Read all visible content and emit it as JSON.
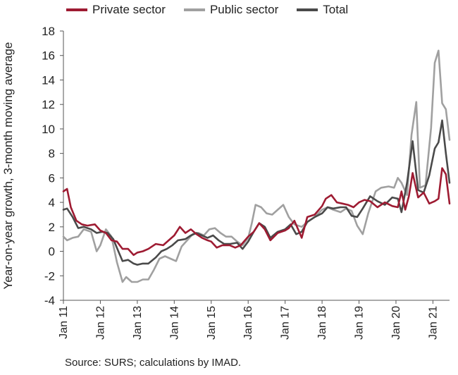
{
  "chart_data": {
    "type": "line",
    "title": "",
    "ylabel": "Year-on-year growth, 3-month moving average",
    "xlabel": "",
    "ylim": [
      -4,
      18
    ],
    "yticks": [
      "18",
      "16",
      "14",
      "12",
      "10",
      "8",
      "6",
      "4",
      "2",
      "0",
      "-2",
      "-4"
    ],
    "ytick_values": [
      18,
      16,
      14,
      12,
      10,
      8,
      6,
      4,
      2,
      0,
      -2,
      -4
    ],
    "xticks": [
      "Jan 11",
      "Jan 12",
      "Jan 13",
      "Jan 14",
      "Jan 15",
      "Jan 16",
      "Jan 17",
      "Jan 18",
      "Jan 19",
      "Jan 20",
      "Jan 21"
    ],
    "xlim": [
      2011.0,
      2021.45
    ],
    "grid": false,
    "legend_position": "top",
    "series": [
      {
        "name": "Private sector",
        "color": "#9e1b32",
        "x": [
          2011.0,
          2011.1,
          2011.2,
          2011.35,
          2011.5,
          2011.65,
          2011.85,
          2012.0,
          2012.15,
          2012.3,
          2012.45,
          2012.6,
          2012.75,
          2012.9,
          2013.0,
          2013.15,
          2013.3,
          2013.5,
          2013.7,
          2013.85,
          2014.0,
          2014.15,
          2014.3,
          2014.45,
          2014.6,
          2014.75,
          2014.9,
          2015.0,
          2015.15,
          2015.3,
          2015.5,
          2015.65,
          2015.8,
          2016.0,
          2016.15,
          2016.3,
          2016.45,
          2016.6,
          2016.8,
          2017.0,
          2017.1,
          2017.25,
          2017.45,
          2017.6,
          2017.8,
          2018.0,
          2018.1,
          2018.25,
          2018.4,
          2018.55,
          2018.7,
          2018.85,
          2019.0,
          2019.15,
          2019.3,
          2019.5,
          2019.7,
          2019.9,
          2020.05,
          2020.15,
          2020.25,
          2020.35,
          2020.45,
          2020.6,
          2020.75,
          2020.9,
          2021.05,
          2021.15,
          2021.25,
          2021.35,
          2021.45
        ],
        "values": [
          4.9,
          5.1,
          3.6,
          2.5,
          2.2,
          2.1,
          2.2,
          1.7,
          1.5,
          0.9,
          0.8,
          0.2,
          0.2,
          -0.3,
          -0.1,
          0.0,
          0.2,
          0.6,
          0.5,
          0.9,
          1.3,
          2.0,
          1.5,
          1.8,
          1.4,
          1.1,
          0.9,
          0.8,
          0.3,
          0.5,
          0.5,
          0.3,
          0.5,
          1.2,
          1.6,
          2.3,
          1.8,
          0.9,
          1.5,
          1.7,
          1.9,
          2.5,
          1.1,
          2.8,
          3.0,
          3.7,
          4.3,
          4.6,
          4.0,
          3.9,
          3.8,
          3.6,
          4.0,
          4.2,
          4.1,
          3.6,
          4.0,
          3.7,
          3.6,
          4.9,
          3.4,
          4.5,
          6.4,
          4.4,
          4.8,
          3.9,
          4.1,
          4.3,
          6.8,
          6.3,
          3.9
        ]
      },
      {
        "name": "Public sector",
        "color": "#a0a0a0",
        "x": [
          2011.0,
          2011.1,
          2011.25,
          2011.4,
          2011.55,
          2011.75,
          2011.9,
          2012.0,
          2012.15,
          2012.3,
          2012.45,
          2012.6,
          2012.7,
          2012.85,
          2013.0,
          2013.15,
          2013.3,
          2013.45,
          2013.6,
          2013.75,
          2013.9,
          2014.05,
          2014.2,
          2014.35,
          2014.5,
          2014.65,
          2014.8,
          2014.95,
          2015.1,
          2015.25,
          2015.4,
          2015.55,
          2015.7,
          2015.85,
          2016.0,
          2016.1,
          2016.2,
          2016.35,
          2016.5,
          2016.65,
          2016.8,
          2016.95,
          2017.1,
          2017.25,
          2017.45,
          2017.6,
          2017.8,
          2018.0,
          2018.15,
          2018.3,
          2018.5,
          2018.65,
          2018.8,
          2018.95,
          2019.1,
          2019.25,
          2019.45,
          2019.6,
          2019.8,
          2019.95,
          2020.05,
          2020.15,
          2020.3,
          2020.42,
          2020.55,
          2020.65,
          2020.8,
          2020.95,
          2021.05,
          2021.15,
          2021.25,
          2021.35,
          2021.45
        ],
        "values": [
          1.2,
          0.9,
          1.1,
          1.2,
          1.8,
          1.6,
          0.0,
          0.5,
          1.8,
          1.2,
          -0.9,
          -2.5,
          -2.1,
          -2.5,
          -2.5,
          -2.3,
          -2.3,
          -1.5,
          -0.6,
          -0.4,
          -0.6,
          -0.8,
          0.4,
          0.9,
          1.4,
          1.5,
          1.3,
          1.8,
          1.9,
          1.5,
          1.2,
          1.2,
          0.8,
          0.5,
          1.1,
          2.3,
          3.8,
          3.6,
          3.1,
          3.0,
          3.4,
          3.8,
          2.8,
          2.2,
          2.0,
          2.4,
          2.8,
          3.4,
          3.6,
          3.4,
          3.2,
          3.5,
          3.3,
          2.1,
          1.4,
          3.1,
          4.9,
          5.2,
          5.3,
          5.2,
          6.0,
          5.6,
          4.6,
          9.5,
          12.2,
          5.2,
          5.4,
          10.1,
          15.4,
          16.4,
          12.1,
          11.6,
          9.1
        ]
      },
      {
        "name": "Total",
        "color": "#4a4a4a",
        "x": [
          2011.0,
          2011.1,
          2011.25,
          2011.4,
          2011.55,
          2011.75,
          2011.9,
          2012.05,
          2012.2,
          2012.35,
          2012.5,
          2012.6,
          2012.75,
          2012.9,
          2013.0,
          2013.15,
          2013.3,
          2013.5,
          2013.65,
          2013.8,
          2013.95,
          2014.1,
          2014.3,
          2014.45,
          2014.6,
          2014.75,
          2014.9,
          2015.05,
          2015.2,
          2015.35,
          2015.5,
          2015.7,
          2015.85,
          2016.0,
          2016.15,
          2016.3,
          2016.45,
          2016.6,
          2016.8,
          2017.0,
          2017.15,
          2017.3,
          2017.45,
          2017.6,
          2017.8,
          2018.0,
          2018.15,
          2018.3,
          2018.5,
          2018.65,
          2018.8,
          2018.95,
          2019.1,
          2019.3,
          2019.5,
          2019.7,
          2019.9,
          2020.05,
          2020.15,
          2020.3,
          2020.45,
          2020.6,
          2020.75,
          2020.9,
          2021.05,
          2021.15,
          2021.25,
          2021.35,
          2021.45
        ],
        "values": [
          3.4,
          3.5,
          2.8,
          1.9,
          2.0,
          1.8,
          1.5,
          1.6,
          1.5,
          1.0,
          -0.1,
          -0.8,
          -0.7,
          -1.0,
          -1.1,
          -1.0,
          -1.0,
          -0.5,
          0.0,
          0.2,
          0.5,
          0.9,
          1.0,
          1.3,
          1.5,
          1.3,
          1.1,
          1.3,
          0.9,
          0.6,
          0.6,
          0.7,
          0.2,
          0.8,
          1.6,
          2.3,
          2.0,
          1.1,
          1.6,
          1.8,
          2.2,
          1.4,
          1.6,
          2.4,
          2.8,
          3.1,
          3.6,
          3.5,
          3.6,
          3.6,
          2.9,
          2.8,
          3.5,
          4.5,
          4.1,
          3.8,
          4.4,
          4.3,
          3.2,
          5.6,
          9.0,
          5.0,
          4.8,
          6.2,
          8.4,
          8.9,
          10.7,
          8.0,
          5.6
        ]
      }
    ]
  },
  "source_text": "Source: SURS; calculations by IMAD."
}
